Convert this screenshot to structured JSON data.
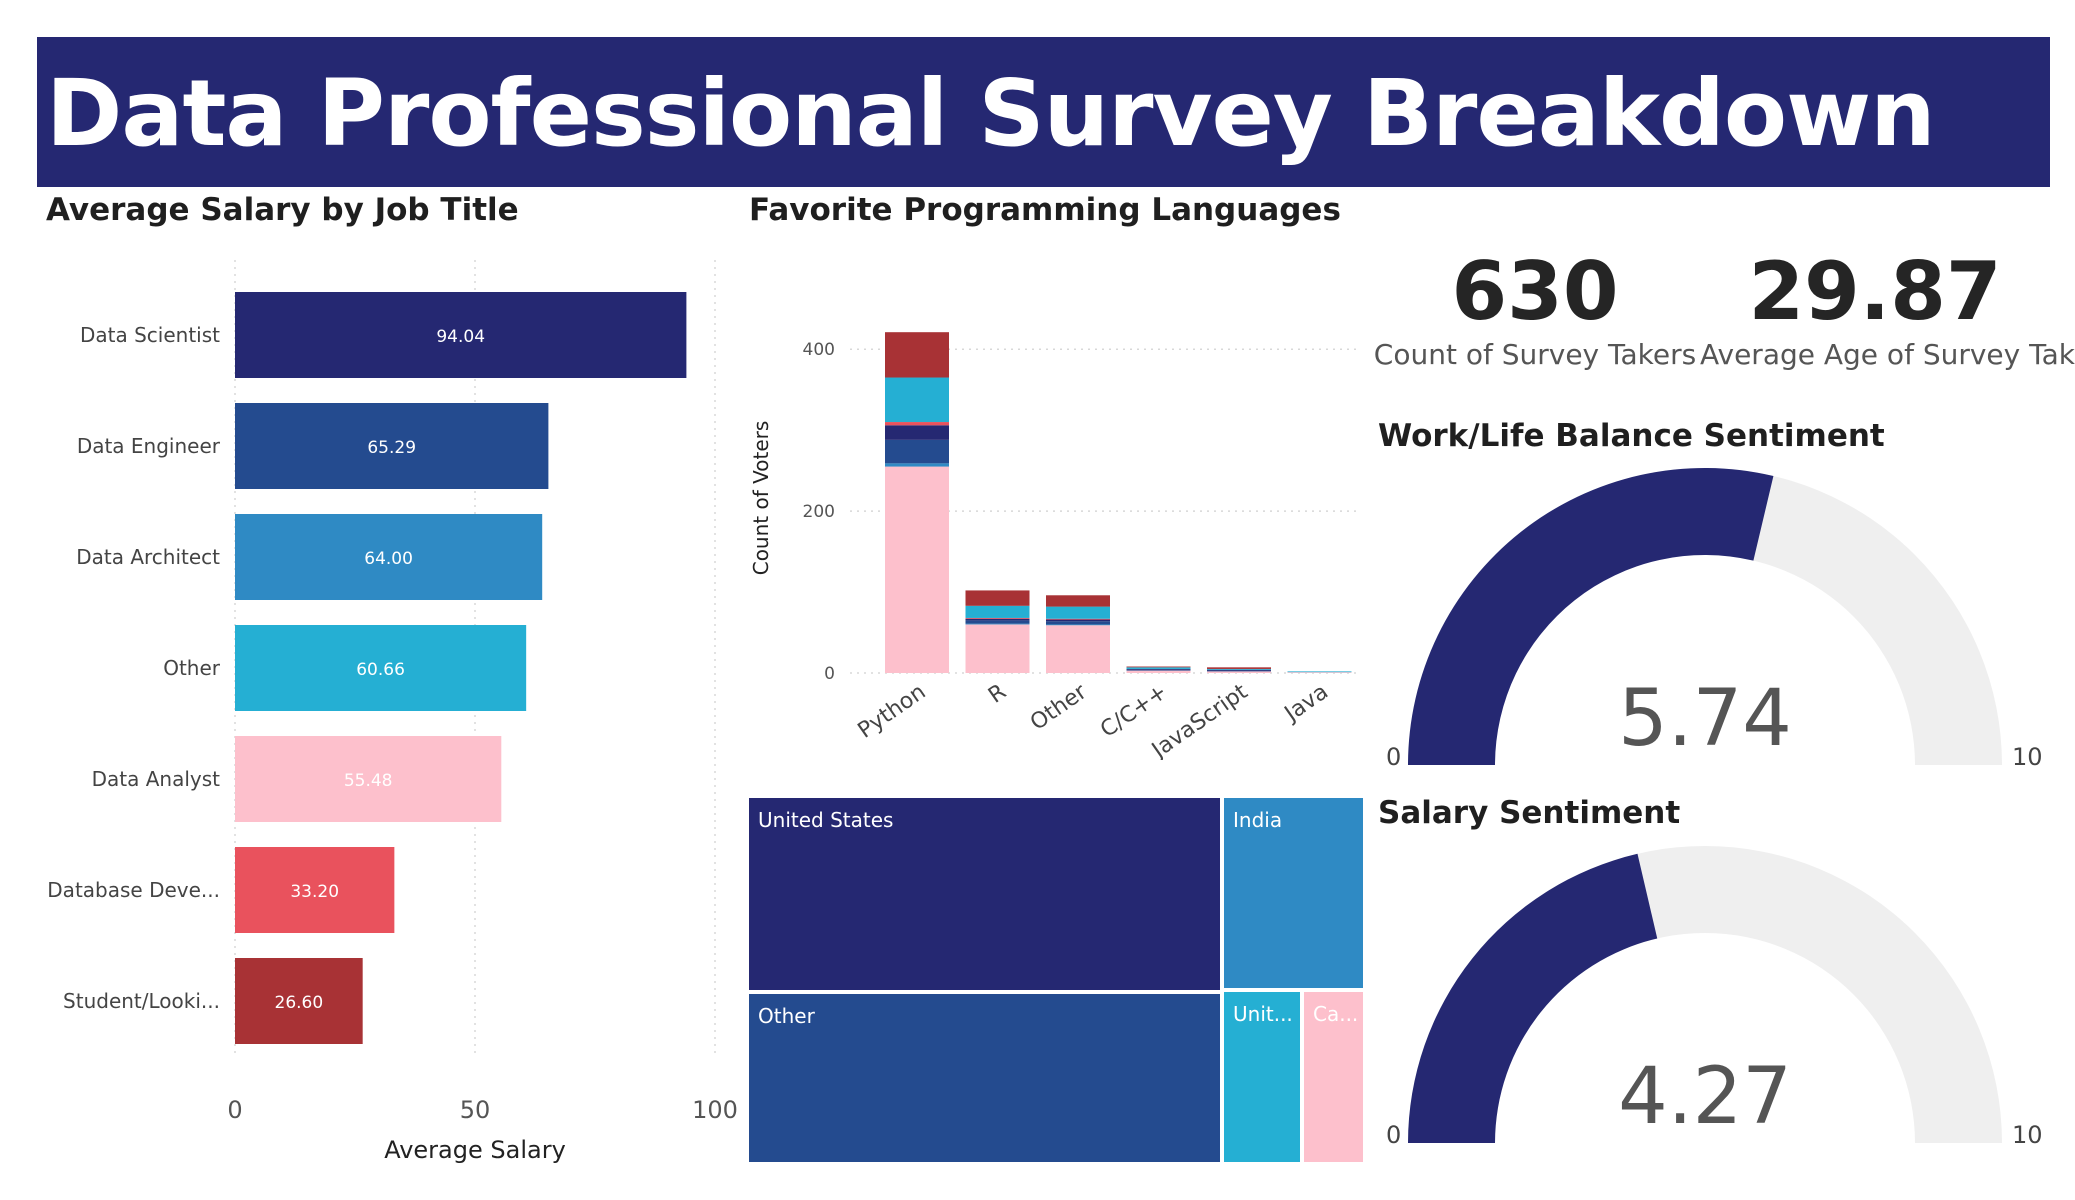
{
  "header": {
    "title": "Data Professional Survey Breakdown"
  },
  "titles": {
    "salary": "Average Salary by Job Title",
    "languages": "Favorite Programming Languages",
    "worklife": "Work/Life Balance Sentiment",
    "salary_sentiment": "Salary Sentiment"
  },
  "kpis": {
    "count": {
      "value": "630",
      "label": "Count of Survey Takers"
    },
    "age": {
      "value": "29.87",
      "label": "Average Age of Survey Taker"
    }
  },
  "colors": {
    "navy": "#252872",
    "blue": "#244b8f",
    "mid_blue": "#2f8ac4",
    "cyan": "#25afd3",
    "pink": "#fdc0cc",
    "coral": "#e9525d",
    "dark_red": "#a83235",
    "gray_track": "#efefef"
  },
  "chart_data": [
    {
      "type": "bar",
      "orientation": "horizontal",
      "title": "Average Salary by Job Title",
      "xlabel": "Average Salary",
      "ylabel": "",
      "xlim": [
        0,
        100
      ],
      "xticks": [
        0,
        50,
        100
      ],
      "categories": [
        "Data Scientist",
        "Data Engineer",
        "Data Architect",
        "Other",
        "Data Analyst",
        "Database Deve...",
        "Student/Looki..."
      ],
      "values": [
        94.04,
        65.29,
        64.0,
        60.66,
        55.48,
        33.2,
        26.6
      ],
      "value_labels": [
        "94.04",
        "65.29",
        "64.00",
        "60.66",
        "55.48",
        "33.20",
        "26.60"
      ],
      "bar_colors": [
        "#252872",
        "#244b8f",
        "#2f8ac4",
        "#25afd3",
        "#fdc0cc",
        "#e9525d",
        "#a83235"
      ]
    },
    {
      "type": "bar",
      "stacked": true,
      "title": "Favorite Programming Languages",
      "xlabel": "",
      "ylabel": "Count of Voters",
      "ylim": [
        0,
        420
      ],
      "yticks": [
        0,
        200,
        400
      ],
      "grid": true,
      "categories": [
        "Python",
        "R",
        "Other",
        "C/C++",
        "JavaScript",
        "Java"
      ],
      "series": [
        {
          "color": "#fdc0cc",
          "values": [
            255,
            60,
            59,
            3,
            2,
            1
          ]
        },
        {
          "color": "#2f8ac4",
          "values": [
            4,
            1,
            1,
            0,
            0,
            0
          ]
        },
        {
          "color": "#244b8f",
          "values": [
            29,
            4,
            4,
            1,
            1,
            0
          ]
        },
        {
          "color": "#252872",
          "values": [
            18,
            2,
            2,
            1,
            1,
            0
          ]
        },
        {
          "color": "#e9525d",
          "values": [
            4,
            1,
            1,
            0,
            0,
            0
          ]
        },
        {
          "color": "#25afd3",
          "values": [
            55,
            15,
            15,
            2,
            1,
            1
          ]
        },
        {
          "color": "#a83235",
          "values": [
            56,
            19,
            14,
            1,
            2,
            0
          ]
        }
      ]
    },
    {
      "type": "treemap",
      "items": [
        {
          "name": "United States",
          "color": "#252872"
        },
        {
          "name": "Other",
          "color": "#244b8f"
        },
        {
          "name": "India",
          "color": "#2f8ac4"
        },
        {
          "name": "Unit...",
          "color": "#25afd3"
        },
        {
          "name": "Ca...",
          "color": "#fdc0cc"
        }
      ]
    },
    {
      "type": "gauge",
      "title": "Work/Life Balance Sentiment",
      "value": 5.74,
      "value_label": "5.74",
      "min": 0,
      "max": 10,
      "min_label": "0",
      "max_label": "10"
    },
    {
      "type": "gauge",
      "title": "Salary Sentiment",
      "value": 4.27,
      "value_label": "4.27",
      "min": 0,
      "max": 10,
      "min_label": "0",
      "max_label": "10"
    }
  ]
}
